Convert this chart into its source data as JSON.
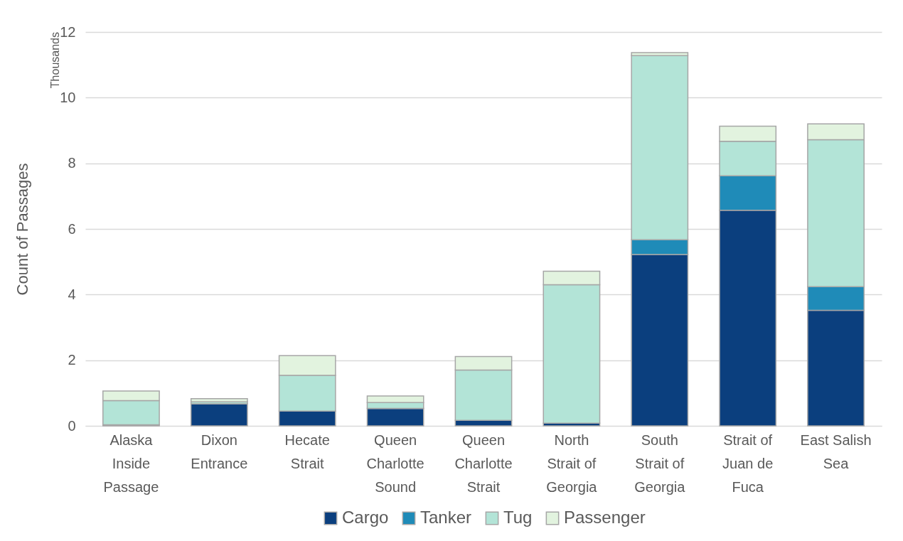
{
  "chart_data": {
    "type": "bar",
    "stacked": true,
    "ylabel": "Count of Passages",
    "annotations": [
      "Thousands"
    ],
    "categories": [
      "Alaska Inside Passage",
      "Dixon Entrance",
      "Hecate Strait",
      "Queen Charlotte Sound",
      "Queen Charlotte Strait",
      "North Strait of Georgia",
      "South Strait of Georgia",
      "Strait of Juan de Fuca",
      "East Salish Sea"
    ],
    "series": [
      {
        "name": "Cargo",
        "color": "#0b3f7e",
        "values": [
          0.03,
          0.67,
          0.45,
          0.53,
          0.17,
          0.08,
          5.22,
          6.57,
          3.52
        ]
      },
      {
        "name": "Tanker",
        "color": "#1f8bb8",
        "values": [
          0,
          0,
          0,
          0,
          0,
          0,
          0.45,
          1.05,
          0.72
        ]
      },
      {
        "name": "Tug",
        "color": "#b3e4d7",
        "values": [
          0.74,
          0.06,
          1.09,
          0.18,
          1.53,
          4.22,
          5.61,
          1.05,
          4.48
        ]
      },
      {
        "name": "Passenger",
        "color": "#e2f3df",
        "values": [
          0.29,
          0.1,
          0.6,
          0.2,
          0.41,
          0.41,
          0.09,
          0.46,
          0.48
        ]
      }
    ],
    "ylim": [
      0,
      12
    ],
    "yticks": [
      0,
      2,
      4,
      6,
      8,
      10,
      12
    ],
    "grid": "y",
    "legend": "bottom"
  }
}
